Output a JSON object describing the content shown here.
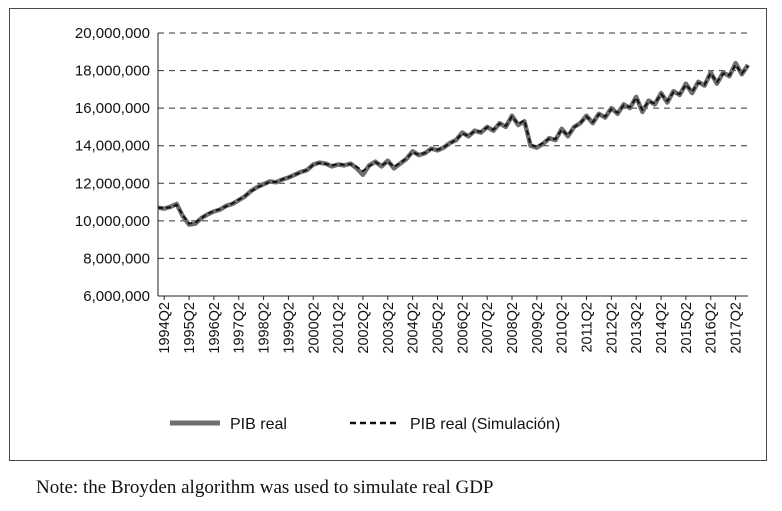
{
  "note": "Note: the Broyden algorithm was used to simulate real GDP",
  "chart_data": {
    "type": "line",
    "ylim": [
      6000000,
      20000000
    ],
    "y_ticks": [
      6000000,
      8000000,
      10000000,
      12000000,
      14000000,
      16000000,
      18000000,
      20000000
    ],
    "y_tick_labels": [
      "6,000,000",
      "8,000,000",
      "10,000,000",
      "12,000,000",
      "14,000,000",
      "16,000,000",
      "18,000,000",
      "20,000,000"
    ],
    "x_tick_labels": [
      "1994Q2",
      "1995Q2",
      "1996Q2",
      "1997Q2",
      "1998Q2",
      "1999Q2",
      "2000Q2",
      "2001Q2",
      "2002Q2",
      "2003Q2",
      "2004Q2",
      "2005Q2",
      "2006Q2",
      "2007Q2",
      "2008Q2",
      "2009Q2",
      "2010Q2",
      "2011Q2",
      "2012Q2",
      "2013Q2",
      "2014Q2",
      "2015Q2",
      "2016Q2",
      "2017Q2"
    ],
    "grid": "horizontal-dashed",
    "legend": "bottom",
    "x": [
      "1994Q1",
      "1994Q2",
      "1994Q3",
      "1994Q4",
      "1995Q1",
      "1995Q2",
      "1995Q3",
      "1995Q4",
      "1996Q1",
      "1996Q2",
      "1996Q3",
      "1996Q4",
      "1997Q1",
      "1997Q2",
      "1997Q3",
      "1997Q4",
      "1998Q1",
      "1998Q2",
      "1998Q3",
      "1998Q4",
      "1999Q1",
      "1999Q2",
      "1999Q3",
      "1999Q4",
      "2000Q1",
      "2000Q2",
      "2000Q3",
      "2000Q4",
      "2001Q1",
      "2001Q2",
      "2001Q3",
      "2001Q4",
      "2002Q1",
      "2002Q2",
      "2002Q3",
      "2002Q4",
      "2003Q1",
      "2003Q2",
      "2003Q3",
      "2003Q4",
      "2004Q1",
      "2004Q2",
      "2004Q3",
      "2004Q4",
      "2005Q1",
      "2005Q2",
      "2005Q3",
      "2005Q4",
      "2006Q1",
      "2006Q2",
      "2006Q3",
      "2006Q4",
      "2007Q1",
      "2007Q2",
      "2007Q3",
      "2007Q4",
      "2008Q1",
      "2008Q2",
      "2008Q3",
      "2008Q4",
      "2009Q1",
      "2009Q2",
      "2009Q3",
      "2009Q4",
      "2010Q1",
      "2010Q2",
      "2010Q3",
      "2010Q4",
      "2011Q1",
      "2011Q2",
      "2011Q3",
      "2011Q4",
      "2012Q1",
      "2012Q2",
      "2012Q3",
      "2012Q4",
      "2013Q1",
      "2013Q2",
      "2013Q3",
      "2013Q4",
      "2014Q1",
      "2014Q2",
      "2014Q3",
      "2014Q4",
      "2015Q1",
      "2015Q2",
      "2015Q3",
      "2015Q4",
      "2016Q1",
      "2016Q2",
      "2016Q3",
      "2016Q4",
      "2017Q1",
      "2017Q2",
      "2017Q3",
      "2017Q4"
    ],
    "series": [
      {
        "name": "PIB real",
        "color": "#6e6e6e",
        "style": "solid",
        "values": [
          10700000,
          10650000,
          10750000,
          10900000,
          10250000,
          9800000,
          9850000,
          10150000,
          10350000,
          10500000,
          10600000,
          10800000,
          10900000,
          11100000,
          11300000,
          11600000,
          11800000,
          11950000,
          12100000,
          12050000,
          12200000,
          12300000,
          12450000,
          12600000,
          12700000,
          13000000,
          13100000,
          13050000,
          12900000,
          13000000,
          12950000,
          13050000,
          12800000,
          12450000,
          12950000,
          13150000,
          12900000,
          13200000,
          12800000,
          13050000,
          13300000,
          13700000,
          13500000,
          13600000,
          13850000,
          13750000,
          13900000,
          14150000,
          14300000,
          14700000,
          14500000,
          14800000,
          14700000,
          15000000,
          14800000,
          15200000,
          15000000,
          15600000,
          15100000,
          15300000,
          14000000,
          13900000,
          14100000,
          14400000,
          14300000,
          14900000,
          14500000,
          15000000,
          15200000,
          15600000,
          15200000,
          15700000,
          15500000,
          16000000,
          15700000,
          16200000,
          16000000,
          16600000,
          15800000,
          16400000,
          16200000,
          16800000,
          16300000,
          16900000,
          16700000,
          17300000,
          16800000,
          17400000,
          17200000,
          17900000,
          17300000,
          17900000,
          17700000,
          18400000,
          17800000,
          18300000
        ]
      },
      {
        "name": "PIB real (Simulación)",
        "color": "#111111",
        "style": "dashed",
        "values": [
          10700000,
          10680000,
          10720000,
          10850000,
          10300000,
          9850000,
          9900000,
          10150000,
          10380000,
          10520000,
          10620000,
          10780000,
          10930000,
          11120000,
          11330000,
          11580000,
          11780000,
          11930000,
          12080000,
          12070000,
          12200000,
          12320000,
          12450000,
          12580000,
          12720000,
          12980000,
          13080000,
          13030000,
          12950000,
          13020000,
          12980000,
          13020000,
          12880000,
          12650000,
          12920000,
          13120000,
          12950000,
          13150000,
          12880000,
          13080000,
          13320000,
          13650000,
          13520000,
          13620000,
          13820000,
          13780000,
          13920000,
          14120000,
          14320000,
          14650000,
          14530000,
          14780000,
          14750000,
          14980000,
          14850000,
          15180000,
          15050000,
          15550000,
          15150000,
          15350000,
          14050000,
          13950000,
          14150000,
          14380000,
          14350000,
          14850000,
          14550000,
          14980000,
          15220000,
          15550000,
          15250000,
          15680000,
          15550000,
          15950000,
          15750000,
          16150000,
          16050000,
          16550000,
          15900000,
          16350000,
          16250000,
          16750000,
          16380000,
          16850000,
          16750000,
          17250000,
          16880000,
          17350000,
          17250000,
          17850000,
          17380000,
          17850000,
          17750000,
          18300000,
          17850000,
          18250000
        ]
      }
    ]
  }
}
